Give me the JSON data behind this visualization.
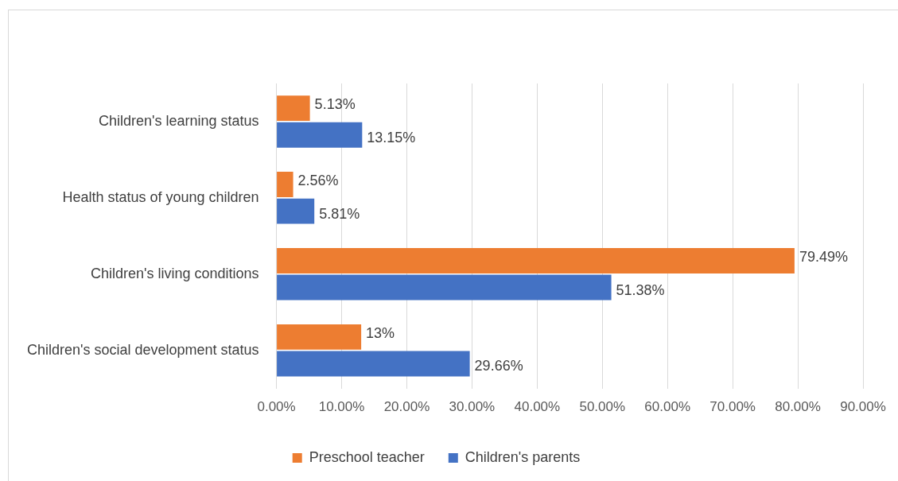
{
  "chart_data": {
    "type": "bar",
    "orientation": "horizontal",
    "categories": [
      "Children's learning status",
      "Health status of young children",
      "Children's living conditions",
      "Children's social development status"
    ],
    "series": [
      {
        "name": "Preschool teacher",
        "color": "#ed7d31",
        "values": [
          5.13,
          2.56,
          79.49,
          13
        ],
        "value_labels": [
          "5.13%",
          "2.56%",
          "79.49%",
          "13%"
        ]
      },
      {
        "name": "Children's parents",
        "color": "#4472c4",
        "values": [
          13.15,
          5.81,
          51.38,
          29.66
        ],
        "value_labels": [
          "13.15%",
          "5.81%",
          "51.38%",
          "29.66%"
        ]
      }
    ],
    "xlim": [
      0,
      90
    ],
    "xticks": [
      {
        "value": 0,
        "label": "0.00%"
      },
      {
        "value": 10,
        "label": "10.00%"
      },
      {
        "value": 20,
        "label": "20.00%"
      },
      {
        "value": 30,
        "label": "30.00%"
      },
      {
        "value": 40,
        "label": "40.00%"
      },
      {
        "value": 50,
        "label": "50.00%"
      },
      {
        "value": 60,
        "label": "60.00%"
      },
      {
        "value": 70,
        "label": "70.00%"
      },
      {
        "value": 80,
        "label": "80.00%"
      },
      {
        "value": 90,
        "label": "90.00%"
      }
    ],
    "grid": "x",
    "legend": "bottom"
  }
}
